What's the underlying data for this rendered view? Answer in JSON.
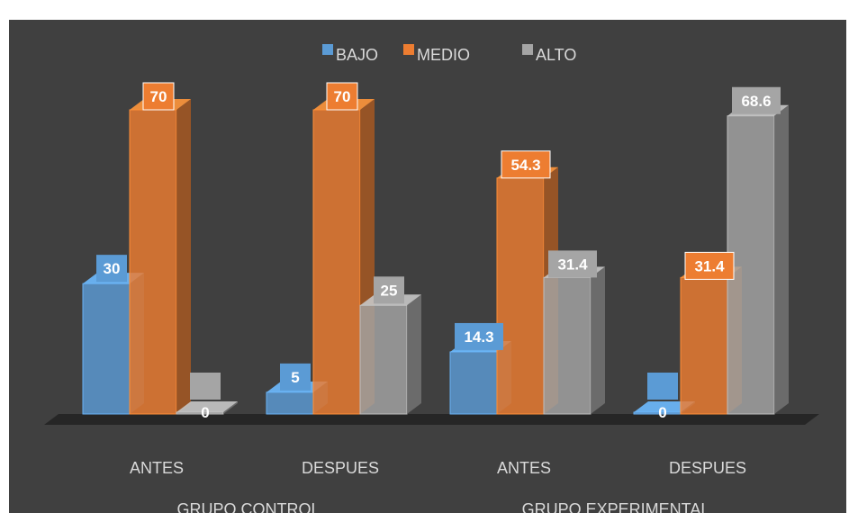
{
  "chart_data": {
    "type": "bar",
    "categories": [
      "ANTES",
      "DESPUES",
      "ANTES",
      "DESPUES"
    ],
    "groups": [
      {
        "label": "GRUPO CONTROL",
        "categories": [
          "ANTES",
          "DESPUES"
        ]
      },
      {
        "label": "GRUPO EXPERIMENTAL",
        "categories": [
          "ANTES",
          "DESPUES"
        ]
      }
    ],
    "series": [
      {
        "name": "BAJO",
        "color": "#5b9bd5",
        "values": [
          30,
          5,
          14.3,
          0
        ],
        "labels": [
          "30",
          "5",
          "14.3",
          "0"
        ]
      },
      {
        "name": "MEDIO",
        "color": "#ed7d31",
        "values": [
          70,
          70,
          54.3,
          31.4
        ],
        "labels": [
          "70",
          "70",
          "54.3",
          "31.4"
        ]
      },
      {
        "name": "ALTO",
        "color": "#a5a5a5",
        "values": [
          0,
          25,
          31.4,
          68.6
        ],
        "labels": [
          "0",
          "25",
          "31.4",
          "68.6"
        ]
      }
    ],
    "ylim": [
      0,
      70
    ],
    "legend_position": "top",
    "grid": false,
    "style": "3d-clustered-column"
  }
}
